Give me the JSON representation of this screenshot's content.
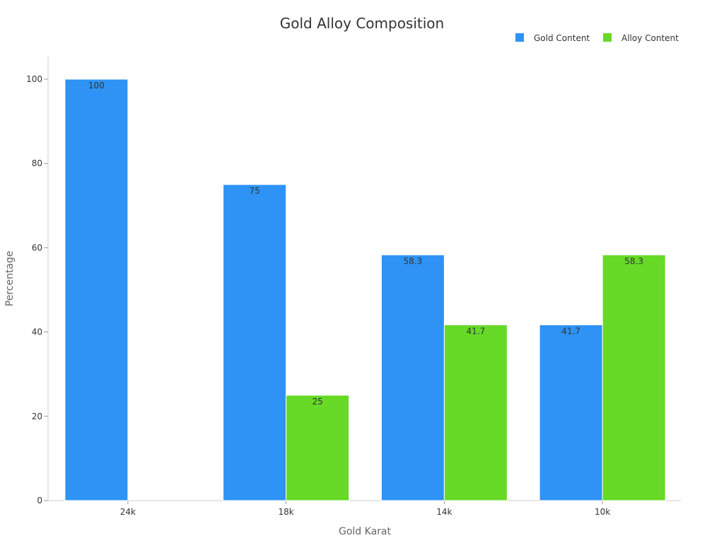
{
  "chart_data": {
    "type": "bar",
    "title": "Gold Alloy Composition",
    "xlabel": "Gold Karat",
    "ylabel": "Percentage",
    "categories": [
      "24k",
      "18k",
      "14k",
      "10k"
    ],
    "series": [
      {
        "name": "Gold Content",
        "values": [
          100,
          75,
          58.3,
          41.7
        ],
        "color": "#2E93F5"
      },
      {
        "name": "Alloy Content",
        "values": [
          0,
          25,
          41.7,
          58.3
        ],
        "color": "#66DA26"
      }
    ],
    "ylim": [
      0,
      105
    ],
    "yticks": [
      0,
      20,
      40,
      60,
      80,
      100
    ],
    "legend_position": "top-right",
    "grid": false
  }
}
